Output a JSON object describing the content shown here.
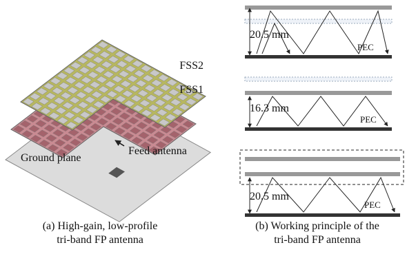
{
  "left": {
    "labels": {
      "fss2": "FSS2",
      "fss1": "FSS1",
      "ground": "Ground plane",
      "feed": "Feed antenna"
    },
    "caption": [
      "(a) High-gain, low-profile",
      "tri-band FP antenna"
    ]
  },
  "right": {
    "panels": [
      {
        "height": "20.5 mm",
        "pec": "PEC"
      },
      {
        "height": "16.3 mm",
        "pec": "PEC"
      },
      {
        "height": "20.5 mm",
        "pec": "PEC"
      }
    ],
    "caption": [
      "(b) Working principle of the",
      "tri-band FP antenna"
    ]
  }
}
